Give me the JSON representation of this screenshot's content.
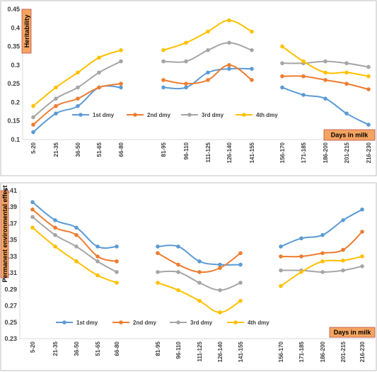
{
  "colors": {
    "series": [
      "#5b9bd5",
      "#ed7d31",
      "#a5a5a5",
      "#ffc000"
    ],
    "label_box": "#f4a460",
    "label_border": "#c0504d",
    "grid": "#d9d9d9",
    "frame": "#bfbfbf"
  },
  "chart_data": [
    {
      "type": "line",
      "ylabel": "Heritability",
      "xlabel": "Days in milk",
      "ylim": [
        0.1,
        0.45
      ],
      "yticks": [
        "0.1",
        "0.15",
        "0.2",
        "0.25",
        "0.3",
        "0.35",
        "0.4",
        "0.45"
      ],
      "grid": false,
      "legend_position": "bottom",
      "categories": [
        "5-20",
        "21-35",
        "36-50",
        "51-65",
        "66-80",
        "81-95",
        "96-110",
        "111-125",
        "126-140",
        "141-155",
        "156-170",
        "171-185",
        "186-200",
        "201-215",
        "216-230"
      ],
      "series": [
        {
          "name": "1st dmy",
          "values": [
            0.12,
            0.17,
            0.19,
            0.24,
            0.24,
            0.24,
            0.24,
            0.28,
            0.29,
            0.29,
            0.24,
            0.22,
            0.21,
            0.17,
            0.14
          ]
        },
        {
          "name": "2nd dmy",
          "values": [
            0.14,
            0.19,
            0.21,
            0.24,
            0.25,
            0.26,
            0.25,
            0.26,
            0.3,
            0.26,
            0.27,
            0.27,
            0.26,
            0.25,
            0.235
          ]
        },
        {
          "name": "3rd dmy",
          "values": [
            0.16,
            0.21,
            0.24,
            0.28,
            0.31,
            0.31,
            0.31,
            0.34,
            0.36,
            0.34,
            0.305,
            0.305,
            0.31,
            0.305,
            0.295
          ]
        },
        {
          "name": "4th dmy",
          "values": [
            0.19,
            0.24,
            0.28,
            0.32,
            0.34,
            0.34,
            0.36,
            0.39,
            0.42,
            0.39,
            0.35,
            0.31,
            0.28,
            0.28,
            0.27
          ]
        }
      ]
    },
    {
      "type": "line",
      "ylabel": "Permanent environmental effect",
      "xlabel": "Days in milk",
      "ylim": [
        0.23,
        0.41
      ],
      "yticks": [
        "0.23",
        "0.25",
        "0.27",
        "0.29",
        "0.31",
        "0.33",
        "0.35",
        "0.37",
        "0.39",
        "0.41"
      ],
      "grid": false,
      "legend_position": "bottom",
      "categories": [
        "5-20",
        "21-35",
        "36-50",
        "51-65",
        "66-80",
        "81-95",
        "96-110",
        "111-125",
        "126-140",
        "141-155",
        "156-170",
        "171-185",
        "186-200",
        "201-215",
        "216-230"
      ],
      "series": [
        {
          "name": "1st dmy",
          "values": [
            0.396,
            0.374,
            0.365,
            0.342,
            0.342,
            0.342,
            0.342,
            0.324,
            0.32,
            0.32,
            0.342,
            0.352,
            0.356,
            0.374,
            0.387
          ]
        },
        {
          "name": "2nd dmy",
          "values": [
            0.387,
            0.365,
            0.356,
            0.33,
            0.324,
            0.334,
            0.32,
            0.311,
            0.316,
            0.334,
            0.33,
            0.33,
            0.334,
            0.338,
            0.36
          ]
        },
        {
          "name": "3rd dmy",
          "values": [
            0.378,
            0.356,
            0.342,
            0.324,
            0.311,
            0.311,
            0.311,
            0.298,
            0.289,
            0.298,
            0.313,
            0.313,
            0.311,
            0.313,
            0.318
          ]
        },
        {
          "name": "4th dmy",
          "values": [
            0.365,
            0.342,
            0.324,
            0.307,
            0.298,
            0.298,
            0.289,
            0.276,
            0.262,
            0.276,
            0.294,
            0.311,
            0.324,
            0.325,
            0.33
          ]
        }
      ]
    }
  ]
}
